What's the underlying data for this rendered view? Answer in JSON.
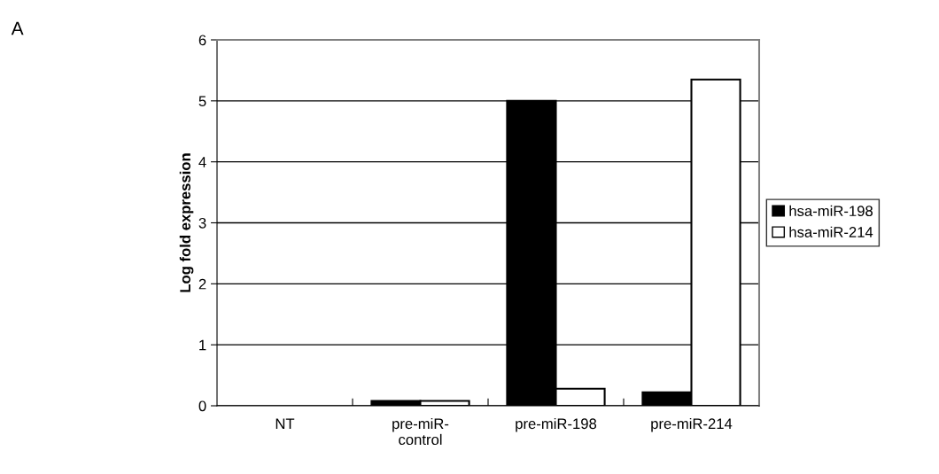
{
  "chart_data": {
    "type": "bar",
    "annotations": [
      "A"
    ],
    "ylabel": "Log fold expression",
    "categories": [
      "NT",
      "pre-miR-\ncontrol",
      "pre-miR-198",
      "pre-miR-214"
    ],
    "series": [
      {
        "name": "hsa-miR-198",
        "color": "#000000",
        "values": [
          0,
          0.08,
          5.0,
          0.22
        ]
      },
      {
        "name": "hsa-miR-214",
        "color": "#ffffff",
        "values": [
          0,
          0.08,
          0.28,
          5.35
        ]
      }
    ],
    "ylim": [
      0,
      6
    ],
    "yticks": [
      0,
      1,
      2,
      3,
      4,
      5,
      6
    ],
    "grid": "y",
    "legend": "right"
  }
}
